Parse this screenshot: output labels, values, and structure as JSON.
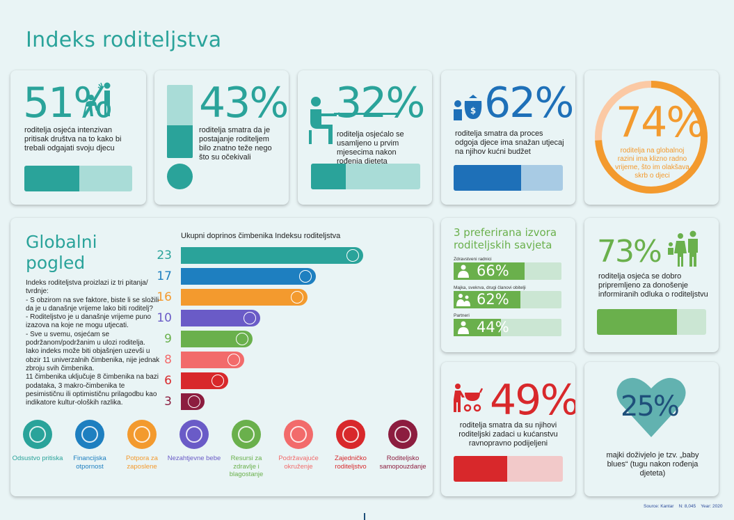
{
  "title": "Indeks roditeljstva",
  "stats": {
    "s51": {
      "value": "51%",
      "text": "roditelja osjeća intenzivan pritisak društva na to kako bi trebali odgajati svoju djecu",
      "fill": 0.51
    },
    "s43": {
      "value": "43%",
      "text": "roditelja smatra da je postajanje roditeljem bilo znatno teže nego što su očekivali",
      "fill": 0.43
    },
    "s32": {
      "value": "32%",
      "text": "roditelja osjećalo se usamljeno u prvim mjesecima nakon rođenja djeteta",
      "fill": 0.32
    },
    "s62": {
      "value": "62%",
      "text": "roditelja smatra da proces odgoja djece ima snažan utjecaj na njihov kućni budžet",
      "fill": 0.62
    },
    "s74": {
      "value": "74%",
      "text": "roditelja na globalnoj razini ima klizno radno vrijeme, što im olakšava skrb o djeci",
      "fill": 0.74
    },
    "s73": {
      "value": "73%",
      "text": "roditelja osjeća se dobro pripremljeno za donošenje informiranih odluka o roditeljstvu",
      "fill": 0.73
    },
    "s49": {
      "value": "49%",
      "text": "roditelja smatra da su njihovi roditeljski zadaci u kućanstvu ravnopravno podijeljeni",
      "fill": 0.49
    },
    "s25": {
      "value": "25%",
      "text": "majki doživjelo je tzv. „baby blues“ (tugu nakon rođenja djeteta)",
      "fill": 0.25
    }
  },
  "global": {
    "title_line1": "Globalni",
    "title_line2": "pogled",
    "text": [
      "Indeks roditeljstva proizlazi iz tri pitanja/ tvrdnje:",
      "- S obzirom na sve faktore, biste li se složili da je u današnje vrijeme lako biti roditelj?",
      "- Roditeljstvo je u današnje vrijeme puno izazova na koje ne mogu utjecati.",
      "- Sve u svemu, osjećam se podržanom/podržanim u ulozi roditelja.",
      "Iako indeks može biti objašnjen uzevši u obzir 11 univerzalnih čimbenika, nije jednak zbroju svih čimbenika.",
      "11 čimbenika uključuje 8 čimbenika na bazi podataka, 3 makro-čimbenika te pesimističnu ili optimističnu prilagodbu kao indikatore kultur-oloških razlika."
    ],
    "legend": [
      {
        "label": "Odsustvo pritiska",
        "color": "#2aa39a"
      },
      {
        "label": "Financijska otpornost",
        "color": "#1e7fc0"
      },
      {
        "label": "Potpora za zaposlene",
        "color": "#f39a2e"
      },
      {
        "label": "Nezahtjevne bebe",
        "color": "#6a5bc7"
      },
      {
        "label": "Resursi za zdravlje i blagostanje",
        "color": "#6ab04c"
      },
      {
        "label": "Podržavajuće okruženje",
        "color": "#f26b6b"
      },
      {
        "label": "Zajedničko roditeljstvo",
        "color": "#d8282b"
      },
      {
        "label": "Roditeljsko samopouzdanje",
        "color": "#8c1d3f"
      }
    ]
  },
  "chart_data": {
    "type": "bar",
    "title": "Ukupni doprinos čimbenika Indeksu roditeljstva",
    "categories": [
      "Odsustvo pritiska",
      "Financijska otpornost",
      "Potpora za zaposlene",
      "Nezahtjevne bebe",
      "Resursi za zdravlje i blagostanje",
      "Podržavajuće okruženje",
      "Zajedničko roditeljstvo",
      "Roditeljsko samopouzdanje"
    ],
    "values": [
      23,
      17,
      16,
      10,
      9,
      8,
      6,
      3
    ],
    "colors": [
      "#2aa39a",
      "#1e7fc0",
      "#f39a2e",
      "#6a5bc7",
      "#6ab04c",
      "#f26b6b",
      "#d8282b",
      "#8c1d3f"
    ],
    "orientation": "horizontal"
  },
  "sources": {
    "title_line1": "3 preferirana izvora",
    "title_line2": "roditeljskih savjeta",
    "items": [
      {
        "label": "Zdravstveni radnici",
        "value": "66%",
        "fill": 0.66
      },
      {
        "label": "Majka, svekrva, drugi članovi obitelji",
        "value": "62%",
        "fill": 0.62
      },
      {
        "label": "Partneri",
        "value": "44%",
        "fill": 0.44
      }
    ]
  },
  "footer": {
    "source": "Source: Kantar",
    "n": "N: 8,045",
    "year": "Year: 2020"
  },
  "colors": {
    "teal": "#2aa39a",
    "teal_light": "#a9dcd7",
    "blue": "#1e70b8",
    "blue_light": "#a8cbe4",
    "orange": "#f39a2e",
    "orange_light": "#fbc9a4",
    "green": "#6ab04c",
    "green_light": "#cbe6d3",
    "red": "#d8282b",
    "red_light": "#f2c9c9",
    "heart": "#62b2b0",
    "bg": "#e9f4f5"
  }
}
